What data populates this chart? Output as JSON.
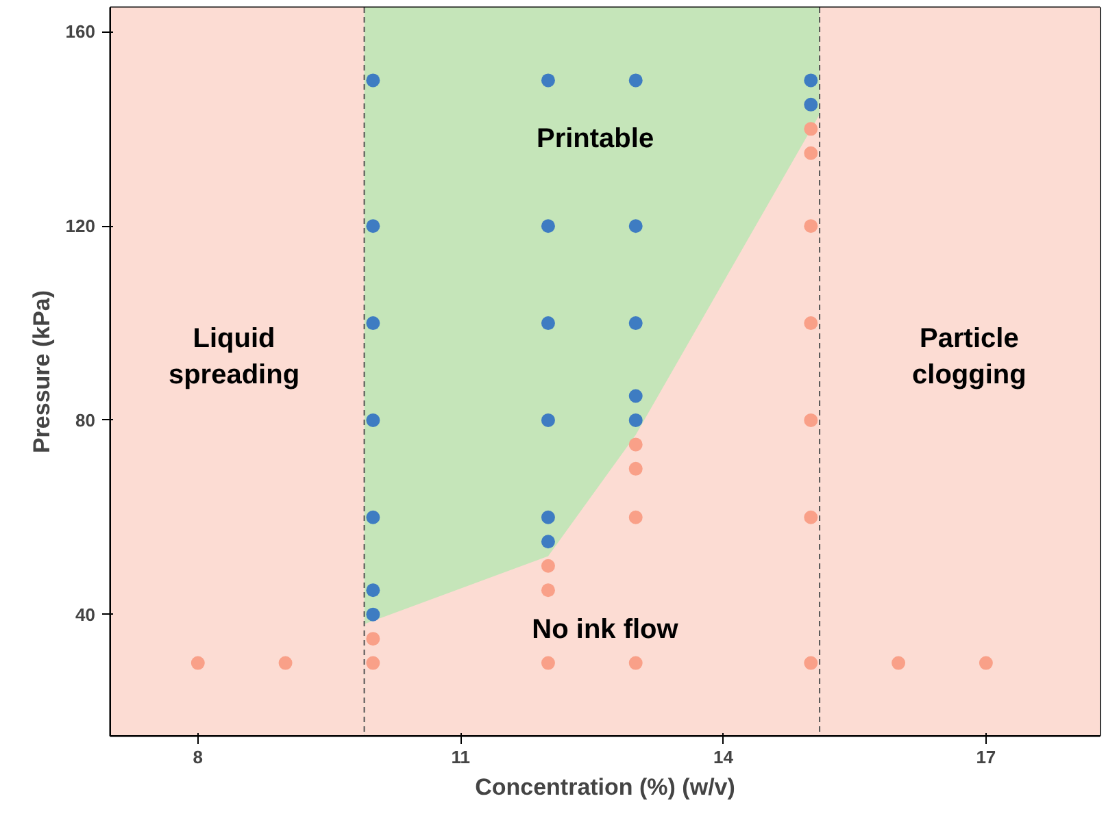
{
  "chart_data": {
    "type": "scatter",
    "xlabel": "Concentration (%) (w/v)",
    "ylabel": "Pressure (kPa)",
    "xlim": [
      7,
      18.3
    ],
    "ylim": [
      15,
      165
    ],
    "xticks": [
      8,
      11,
      14,
      17
    ],
    "yticks": [
      40,
      80,
      120,
      160
    ],
    "grid": false,
    "series": [
      {
        "type": "area",
        "color": "#fcdcd3",
        "x": [
          9.9,
          12,
          13,
          15.1
        ],
        "values": [
          38,
          52,
          77,
          143
        ]
      },
      {
        "color": "#3e7cc2",
        "marker": "circle",
        "x": [
          10,
          10,
          10,
          10,
          10,
          10,
          10,
          12,
          12,
          12,
          12,
          12,
          12,
          13,
          13,
          13,
          13,
          13,
          15,
          15
        ],
        "values": [
          150,
          120,
          100,
          80,
          60,
          45,
          40,
          150,
          120,
          100,
          80,
          60,
          55,
          150,
          120,
          100,
          85,
          80,
          150,
          145
        ]
      },
      {
        "color": "#f9a088",
        "marker": "circle",
        "x": [
          8,
          9,
          10,
          12,
          13,
          15,
          16,
          17,
          10,
          12,
          12,
          13,
          13,
          13,
          15,
          15,
          15,
          15,
          15,
          15
        ],
        "values": [
          30,
          30,
          30,
          30,
          30,
          30,
          30,
          30,
          35,
          50,
          45,
          75,
          70,
          60,
          140,
          135,
          120,
          100,
          80,
          60
        ]
      }
    ],
    "bands": [
      {
        "axis": "x",
        "from": 7,
        "to": 9.9,
        "color": "#fcdcd3"
      },
      {
        "axis": "x",
        "from": 9.9,
        "to": 15.1,
        "color": "#c5e5b9"
      },
      {
        "axis": "x",
        "from": 15.1,
        "to": 18.3,
        "color": "#fcdcd3"
      }
    ],
    "ref_lines": [
      {
        "axis": "x",
        "value": 9.9,
        "line_style": "dashed",
        "color": "#555555"
      },
      {
        "axis": "x",
        "value": 15.1,
        "line_style": "dashed",
        "color": "#555555"
      }
    ],
    "annotations": [
      "Liquid\nspreading",
      "Printable",
      "No ink flow",
      "Particle\nclogging"
    ]
  }
}
